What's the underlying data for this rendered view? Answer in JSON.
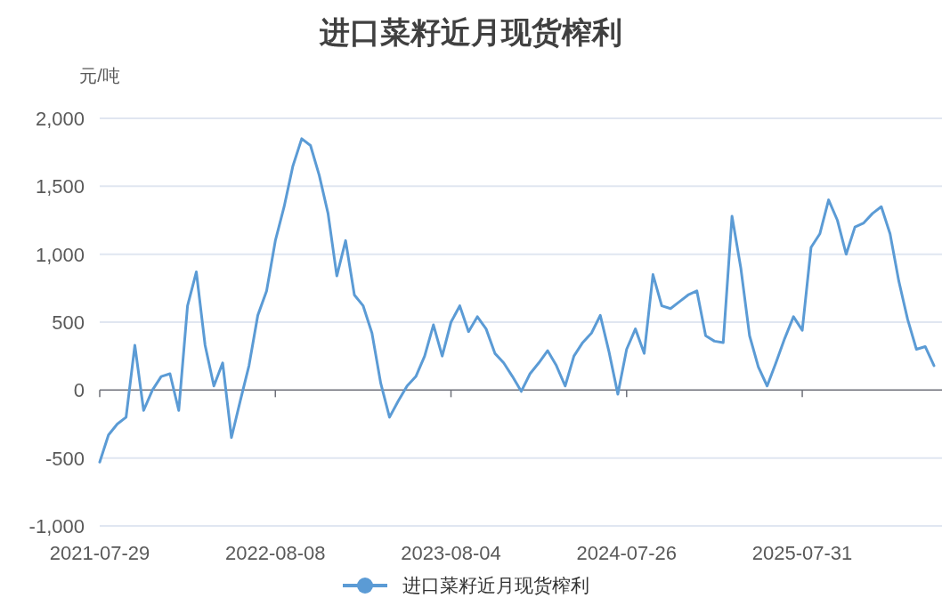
{
  "chart_data": {
    "type": "line",
    "title": "进口菜籽近月现货榨利",
    "ylabel": "元/吨",
    "categories": [
      "2021-07-29",
      null,
      null,
      null,
      null,
      null,
      null,
      null,
      null,
      null,
      null,
      null,
      null,
      null,
      null,
      null,
      null,
      null,
      null,
      null,
      "2022-08-08",
      null,
      null,
      null,
      null,
      null,
      null,
      null,
      null,
      null,
      null,
      null,
      null,
      null,
      null,
      null,
      null,
      null,
      null,
      null,
      "2023-08-04",
      null,
      null,
      null,
      null,
      null,
      null,
      null,
      null,
      null,
      null,
      null,
      null,
      null,
      null,
      null,
      null,
      null,
      null,
      null,
      "2024-07-26",
      null,
      null,
      null,
      null,
      null,
      null,
      null,
      null,
      null,
      null,
      null,
      null,
      null,
      null,
      null,
      null,
      null,
      null,
      null,
      "2025-07-31",
      null,
      null,
      null,
      null,
      null,
      null,
      null,
      null,
      null,
      null,
      null,
      null,
      null,
      null,
      null
    ],
    "series": [
      {
        "name": "进口菜籽近月现货榨利",
        "color": "#5b9bd5",
        "values": [
          -530,
          -330,
          -250,
          -200,
          330,
          -150,
          0,
          100,
          120,
          -150,
          620,
          870,
          330,
          30,
          200,
          -350,
          -80,
          180,
          550,
          730,
          1100,
          1350,
          1650,
          1850,
          1800,
          1580,
          1300,
          840,
          1100,
          700,
          620,
          420,
          50,
          -200,
          -80,
          30,
          100,
          250,
          480,
          250,
          500,
          620,
          430,
          540,
          450,
          270,
          200,
          100,
          -10,
          120,
          200,
          290,
          180,
          30,
          250,
          350,
          420,
          550,
          280,
          -30,
          300,
          450,
          270,
          850,
          620,
          600,
          650,
          700,
          730,
          400,
          360,
          350,
          1280,
          900,
          400,
          170,
          30,
          200,
          380,
          540,
          440,
          1050,
          1150,
          1400,
          1250,
          1000,
          1200,
          1230,
          1300,
          1350,
          1150,
          800,
          520,
          300,
          320,
          180
        ]
      }
    ],
    "ylim": [
      -1000,
      2000
    ],
    "yticks": [
      {
        "value": -1000,
        "label": "-1,000"
      },
      {
        "value": -500,
        "label": "-500"
      },
      0,
      500,
      {
        "value": 1000,
        "label": "1,000"
      },
      {
        "value": 1500,
        "label": "1,500"
      },
      {
        "value": 2000,
        "label": "2,000"
      }
    ],
    "grid": "y",
    "legend": "bottom"
  }
}
